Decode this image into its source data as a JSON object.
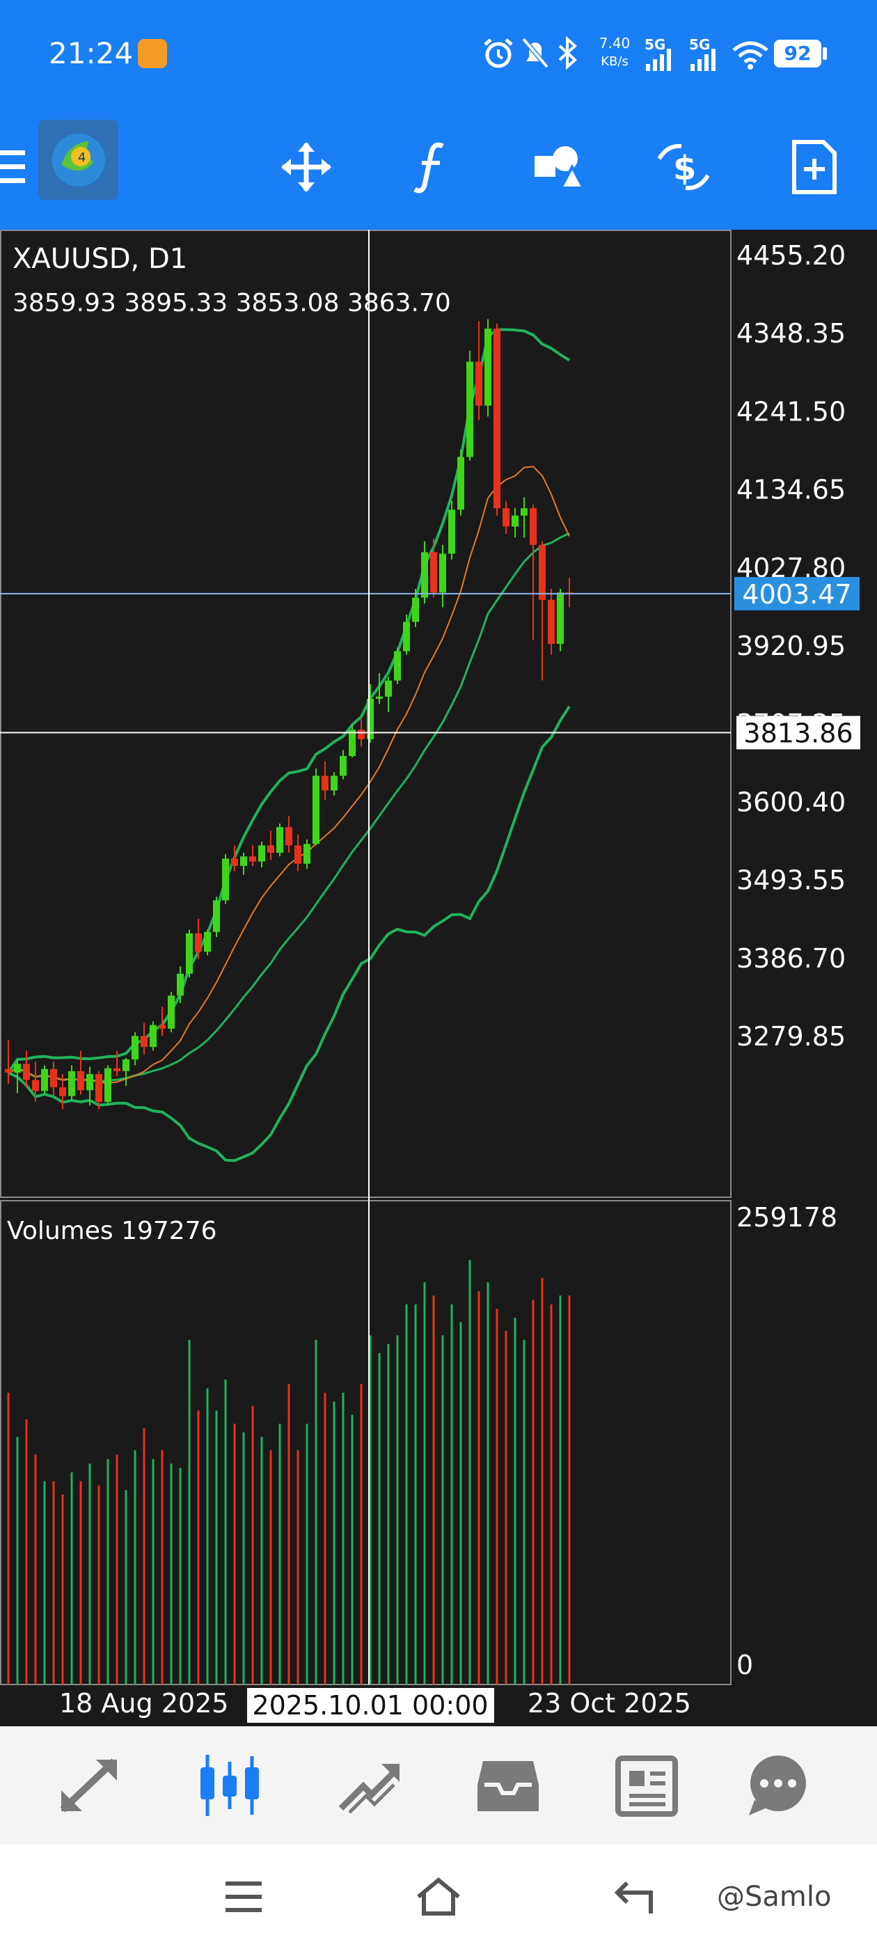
{
  "status_bar": {
    "time": "21:24",
    "net_speed_value": "7.40",
    "net_speed_unit": "KB/s",
    "signal1_label": "5G",
    "signal2_label": "5G",
    "battery": "92",
    "icons": [
      "alarm-icon",
      "mute-icon",
      "bluetooth-icon",
      "wifi-icon"
    ]
  },
  "toolbar": {
    "menu_icon": "hamburger-icon",
    "logo": "metatrader-logo",
    "tools": [
      "crosshair-move-icon",
      "function-indicator-icon",
      "objects-icon",
      "trade-icon",
      "new-order-icon"
    ]
  },
  "chart": {
    "symbol_timeframe": "XAUUSD, D1",
    "ohlc": "3859.93 3895.33 3853.08 3863.70",
    "current_price": "4003.47",
    "crosshair_price": "3813.86",
    "crosshair_time": "2025.10.01 00:00",
    "price_ticks": [
      "4455.20",
      "4348.35",
      "4241.50",
      "4134.65",
      "4027.80",
      "3920.95",
      "3707.25",
      "3600.40",
      "3493.55",
      "3386.70",
      "3279.85"
    ],
    "x_labels": [
      "18 Aug 2025",
      "23 Oct 2025"
    ],
    "volumes_label": "Volumes 197276",
    "volume_max": "259178",
    "volume_min": "0",
    "colors": {
      "bull": "#3fd61a",
      "bear": "#e8321c",
      "band": "#1fb35c",
      "ma": "#e07a2c",
      "current_price_bg": "#2b8fe0"
    }
  },
  "chart_data": {
    "type": "candlestick",
    "y_range": [
      3180,
      4500
    ],
    "volume_range": [
      0,
      259178
    ],
    "candles": [
      [
        3355,
        3395,
        3335,
        3350
      ],
      [
        3350,
        3368,
        3322,
        3362
      ],
      [
        3362,
        3380,
        3330,
        3340
      ],
      [
        3340,
        3365,
        3310,
        3325
      ],
      [
        3325,
        3360,
        3320,
        3355
      ],
      [
        3355,
        3365,
        3318,
        3330
      ],
      [
        3330,
        3348,
        3300,
        3318
      ],
      [
        3318,
        3360,
        3312,
        3352
      ],
      [
        3352,
        3380,
        3320,
        3326
      ],
      [
        3326,
        3358,
        3305,
        3348
      ],
      [
        3348,
        3352,
        3300,
        3310
      ],
      [
        3310,
        3360,
        3305,
        3356
      ],
      [
        3356,
        3380,
        3345,
        3352
      ],
      [
        3352,
        3370,
        3332,
        3368
      ],
      [
        3368,
        3405,
        3360,
        3400
      ],
      [
        3400,
        3418,
        3375,
        3385
      ],
      [
        3385,
        3420,
        3380,
        3415
      ],
      [
        3415,
        3440,
        3400,
        3410
      ],
      [
        3410,
        3460,
        3405,
        3455
      ],
      [
        3455,
        3495,
        3445,
        3485
      ],
      [
        3485,
        3545,
        3480,
        3540
      ],
      [
        3540,
        3560,
        3505,
        3515
      ],
      [
        3515,
        3545,
        3510,
        3542
      ],
      [
        3542,
        3590,
        3535,
        3585
      ],
      [
        3585,
        3648,
        3580,
        3642
      ],
      [
        3642,
        3660,
        3625,
        3632
      ],
      [
        3632,
        3650,
        3620,
        3645
      ],
      [
        3645,
        3660,
        3632,
        3638
      ],
      [
        3638,
        3665,
        3630,
        3660
      ],
      [
        3660,
        3680,
        3640,
        3650
      ],
      [
        3650,
        3690,
        3645,
        3685
      ],
      [
        3685,
        3700,
        3650,
        3660
      ],
      [
        3660,
        3675,
        3625,
        3635
      ],
      [
        3635,
        3668,
        3628,
        3662
      ],
      [
        3662,
        3765,
        3660,
        3755
      ],
      [
        3755,
        3775,
        3722,
        3735
      ],
      [
        3735,
        3760,
        3728,
        3755
      ],
      [
        3755,
        3790,
        3750,
        3782
      ],
      [
        3782,
        3825,
        3780,
        3818
      ],
      [
        3818,
        3835,
        3795,
        3805
      ],
      [
        3805,
        3880,
        3800,
        3860
      ],
      [
        3860,
        3895,
        3853,
        3863
      ],
      [
        3863,
        3890,
        3842,
        3885
      ],
      [
        3885,
        3930,
        3880,
        3925
      ],
      [
        3925,
        3975,
        3920,
        3965
      ],
      [
        3965,
        4010,
        3958,
        3998
      ],
      [
        3998,
        4075,
        3990,
        4060
      ],
      [
        4060,
        4078,
        3998,
        4005
      ],
      [
        4005,
        4070,
        3985,
        4058
      ],
      [
        4058,
        4130,
        4050,
        4118
      ],
      [
        4118,
        4200,
        4110,
        4190
      ],
      [
        4190,
        4335,
        4185,
        4320
      ],
      [
        4320,
        4375,
        4240,
        4260
      ],
      [
        4260,
        4378,
        4245,
        4365
      ],
      [
        4365,
        4372,
        4110,
        4120
      ],
      [
        4120,
        4130,
        4085,
        4095
      ],
      [
        4095,
        4120,
        4080,
        4110
      ],
      [
        4110,
        4135,
        4080,
        4120
      ],
      [
        4120,
        4125,
        3940,
        4070
      ],
      [
        4070,
        4075,
        3885,
        3995
      ],
      [
        3995,
        4010,
        3920,
        3935
      ],
      [
        3935,
        4010,
        3925,
        4005
      ],
      [
        4005,
        4025,
        3985,
        4003
      ]
    ],
    "volume_fractions": [
      0.66,
      0.56,
      0.6,
      0.52,
      0.46,
      0.46,
      0.43,
      0.48,
      0.46,
      0.5,
      0.45,
      0.51,
      0.52,
      0.44,
      0.53,
      0.58,
      0.51,
      0.53,
      0.5,
      0.49,
      0.78,
      0.62,
      0.67,
      0.62,
      0.69,
      0.59,
      0.57,
      0.63,
      0.56,
      0.53,
      0.59,
      0.68,
      0.53,
      0.59,
      0.78,
      0.66,
      0.64,
      0.66,
      0.61,
      0.68,
      0.79,
      0.75,
      0.77,
      0.79,
      0.86,
      0.86,
      0.91,
      0.88,
      0.79,
      0.86,
      0.82,
      0.96,
      0.89,
      0.91,
      0.85,
      0.8,
      0.83,
      0.78,
      0.87,
      0.92,
      0.86,
      0.88,
      0.88
    ]
  },
  "bottom_nav": {
    "items": [
      "quotes-icon",
      "chart-icon",
      "trade-icon",
      "history-icon",
      "news-icon",
      "chat-icon"
    ]
  },
  "system_nav": {
    "items": [
      "menu-icon",
      "home-icon",
      "back-icon"
    ],
    "watermark": "@Samlo"
  }
}
